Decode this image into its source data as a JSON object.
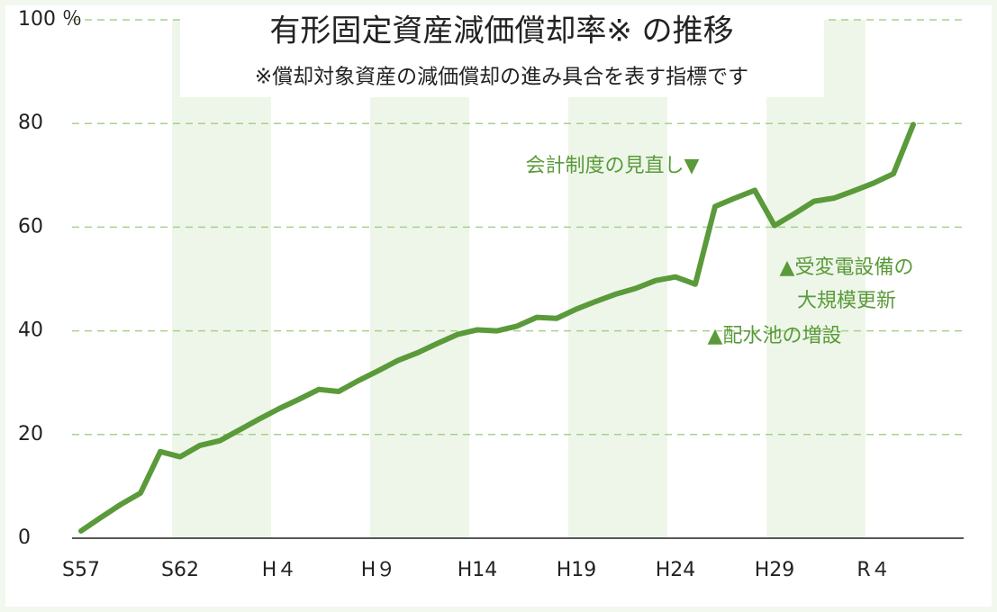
{
  "chart_data": {
    "type": "line",
    "title": "有形固定資産減価償却率※ の推移",
    "subtitle": "※償却対象資産の減価償却の進み具合を表す指標です",
    "annotations": [
      "会計制度の見直し▼",
      "▲受変電設備の",
      "大規模更新",
      "▲配水池の増設"
    ],
    "categories": [
      "S57",
      null,
      null,
      null,
      null,
      "S62",
      null,
      null,
      null,
      null,
      "H４",
      null,
      null,
      null,
      null,
      "H９",
      null,
      null,
      null,
      null,
      "H14",
      null,
      null,
      null,
      null,
      "H19",
      null,
      null,
      null,
      null,
      "H24",
      null,
      null,
      null,
      null,
      "H29",
      null,
      null,
      null,
      null,
      "R４",
      null,
      null
    ],
    "series": [
      {
        "name": "有形固定資産減価償却率",
        "color": "#5a9a3a",
        "values": [
          1.4,
          4,
          6.5,
          8.7,
          16.7,
          15.7,
          17.9,
          18.8,
          20.9,
          23,
          25,
          26.8,
          28.7,
          28.3,
          30.4,
          32.3,
          34.3,
          35.8,
          37.6,
          39.3,
          40.2,
          40,
          40.9,
          42.6,
          42.4,
          44.2,
          45.7,
          47.1,
          48.2,
          49.7,
          50.4,
          49,
          64,
          65.6,
          67.1,
          60.3,
          62.6,
          65,
          65.6,
          67,
          68.5,
          70.3,
          79.8
        ]
      }
    ],
    "ylim": [
      0,
      100
    ],
    "yticks": [
      0,
      20,
      40,
      60,
      80,
      {
        "value": 100,
        "label": "100 ％"
      }
    ],
    "grid": true
  }
}
